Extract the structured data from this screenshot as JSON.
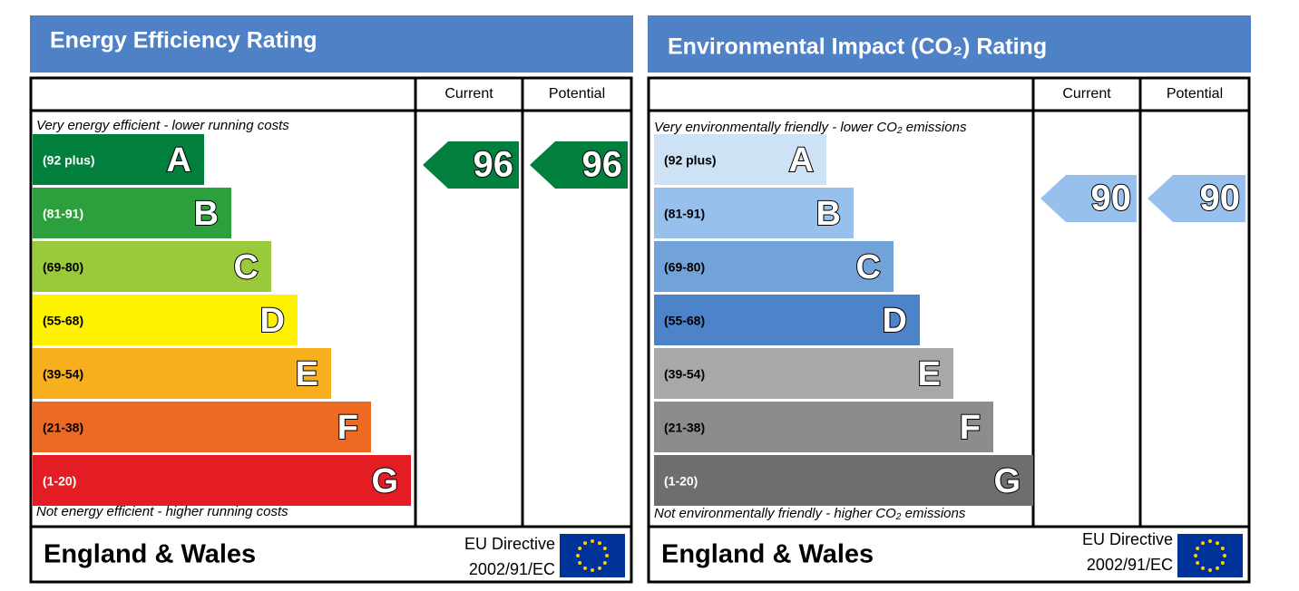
{
  "panels": [
    {
      "title": "Energy Efficiency Rating",
      "columns": [
        "Current",
        "Potential"
      ],
      "top_note": "Very energy efficient - lower running costs",
      "bottom_note": "Not energy efficient - higher running costs",
      "bands": [
        {
          "range": "(92 plus)",
          "letter": "A",
          "color": "#007f3d"
        },
        {
          "range": "(81-91)",
          "letter": "B",
          "color": "#2ca03c"
        },
        {
          "range": "(69-80)",
          "letter": "C",
          "color": "#9ac93b"
        },
        {
          "range": "(55-68)",
          "letter": "D",
          "color": "#fff200"
        },
        {
          "range": "(39-54)",
          "letter": "E",
          "color": "#f7af1e"
        },
        {
          "range": "(21-38)",
          "letter": "F",
          "color": "#ed6a23"
        },
        {
          "range": "(1-20)",
          "letter": "G",
          "color": "#e31d23"
        }
      ],
      "current": 96,
      "potential": 96,
      "footer": {
        "region": "England & Wales",
        "directive": [
          "EU Directive",
          "2002/91/EC"
        ]
      }
    },
    {
      "title": "Environmental Impact (CO₂) Rating",
      "columns": [
        "Current",
        "Potential"
      ],
      "top_note": "Very environmentally friendly - lower CO₂ emissions",
      "bottom_note": "Not environmentally friendly - higher CO₂ emissions",
      "bands": [
        {
          "range": "(92 plus)",
          "letter": "A",
          "color": "#cde3f5"
        },
        {
          "range": "(81-91)",
          "letter": "B",
          "color": "#97c0ec"
        },
        {
          "range": "(69-80)",
          "letter": "C",
          "color": "#72a3d8"
        },
        {
          "range": "(55-68)",
          "letter": "D",
          "color": "#4d84c9"
        },
        {
          "range": "(39-54)",
          "letter": "E",
          "color": "#a8a8a8"
        },
        {
          "range": "(21-38)",
          "letter": "F",
          "color": "#8c8c8c"
        },
        {
          "range": "(1-20)",
          "letter": "G",
          "color": "#6e6e6e"
        }
      ],
      "current": 90,
      "potential": 90,
      "footer": {
        "region": "England & Wales",
        "directive": [
          "EU Directive",
          "2002/91/EC"
        ]
      }
    }
  ]
}
